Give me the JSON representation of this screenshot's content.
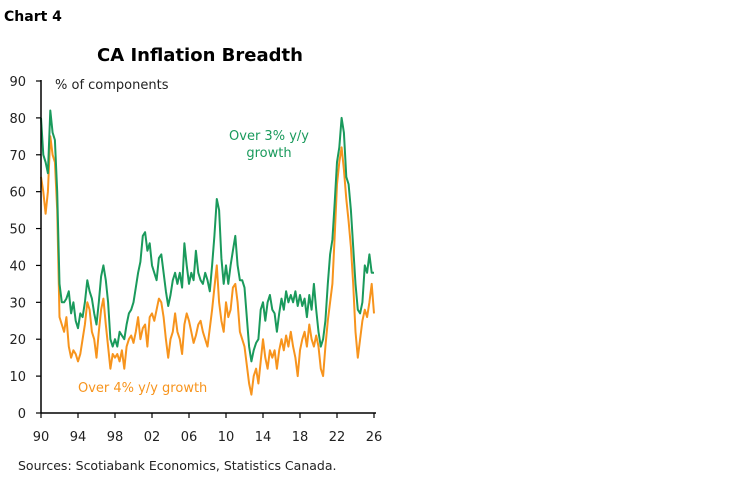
{
  "chart_label": "Chart 4",
  "source": "Sources: Scotiabank Economics, Statistics Canada.",
  "chart_data": {
    "type": "line",
    "title": "CA Inflation Breadth",
    "ylabel": "% of components",
    "xlabel": "",
    "ylim": [
      0,
      90
    ],
    "xlim": [
      1990,
      2026
    ],
    "yticks": [
      "0",
      "10",
      "20",
      "30",
      "40",
      "50",
      "60",
      "70",
      "80",
      "90"
    ],
    "xticks": [
      {
        "value": 1990,
        "label": "90"
      },
      {
        "value": 1994,
        "label": "94"
      },
      {
        "value": 1998,
        "label": "98"
      },
      {
        "value": 2002,
        "label": "02"
      },
      {
        "value": 2006,
        "label": "06"
      },
      {
        "value": 2010,
        "label": "10"
      },
      {
        "value": 2014,
        "label": "14"
      },
      {
        "value": 2018,
        "label": "18"
      },
      {
        "value": 2022,
        "label": "22"
      },
      {
        "value": 2026,
        "label": "26"
      }
    ],
    "grid": false,
    "x_start": 1990,
    "x_step": 0.25,
    "series": [
      {
        "name": "Over 3% y/y growth",
        "color": "#1a9a5c",
        "values": [
          80,
          70,
          68,
          65,
          82,
          76,
          74,
          60,
          35,
          30,
          30,
          31,
          33,
          27,
          30,
          25,
          23,
          27,
          26,
          30,
          36,
          33,
          31,
          27,
          24,
          30,
          37,
          40,
          36,
          30,
          20,
          18,
          20,
          18,
          22,
          21,
          20,
          24,
          27,
          28,
          30,
          34,
          38,
          41,
          48,
          49,
          44,
          46,
          40,
          38,
          36,
          42,
          43,
          38,
          33,
          29,
          32,
          36,
          38,
          35,
          38,
          34,
          46,
          40,
          35,
          38,
          36,
          44,
          38,
          36,
          35,
          38,
          36,
          33,
          40,
          48,
          58,
          55,
          42,
          35,
          40,
          35,
          40,
          44,
          48,
          40,
          36,
          36,
          34,
          26,
          18,
          14,
          17,
          19,
          20,
          28,
          30,
          25,
          30,
          32,
          28,
          27,
          22,
          27,
          31,
          28,
          33,
          30,
          32,
          30,
          33,
          29,
          32,
          29,
          31,
          26,
          32,
          28,
          35,
          28,
          22,
          18,
          20,
          25,
          35,
          43,
          47,
          57,
          68,
          72,
          80,
          76,
          64,
          62,
          55,
          45,
          35,
          28,
          27,
          30,
          40,
          38,
          43,
          38,
          38
        ]
      },
      {
        "name": "Over 4% y/y growth",
        "color": "#f7941d",
        "values": [
          64,
          60,
          54,
          60,
          75,
          70,
          68,
          55,
          26,
          24,
          22,
          26,
          18,
          15,
          17,
          16,
          14,
          16,
          20,
          24,
          30,
          28,
          22,
          20,
          15,
          22,
          28,
          31,
          24,
          18,
          12,
          16,
          15,
          16,
          14,
          17,
          12,
          18,
          20,
          21,
          19,
          22,
          26,
          20,
          23,
          24,
          18,
          26,
          27,
          25,
          28,
          31,
          30,
          26,
          20,
          15,
          20,
          22,
          27,
          22,
          20,
          16,
          24,
          27,
          25,
          22,
          19,
          21,
          24,
          25,
          22,
          20,
          18,
          23,
          28,
          34,
          40,
          30,
          25,
          22,
          30,
          26,
          28,
          34,
          35,
          30,
          22,
          20,
          18,
          13,
          8,
          5,
          10,
          12,
          8,
          14,
          20,
          15,
          12,
          17,
          15,
          17,
          12,
          17,
          20,
          17,
          21,
          18,
          22,
          18,
          15,
          10,
          17,
          20,
          22,
          18,
          24,
          20,
          18,
          21,
          18,
          12,
          10,
          18,
          25,
          30,
          35,
          48,
          62,
          68,
          72,
          66,
          58,
          52,
          45,
          35,
          22,
          15,
          20,
          25,
          28,
          26,
          30,
          35,
          27
        ]
      }
    ]
  }
}
